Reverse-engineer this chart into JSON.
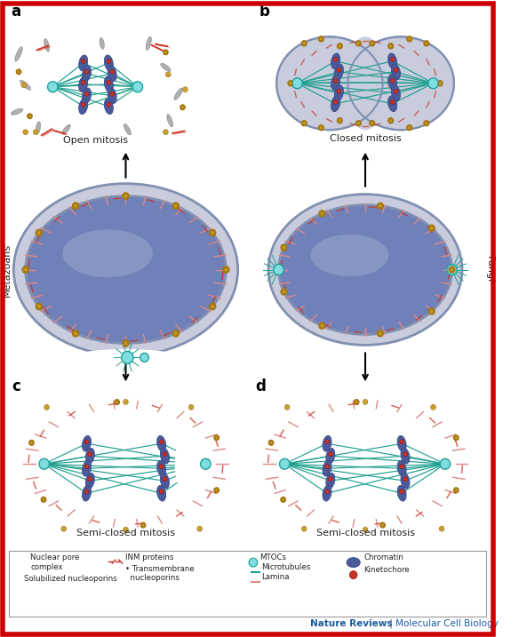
{
  "background_color": "#ffffff",
  "border_color": "#cc0000",
  "colors": {
    "chromatin": "#4a5a9a",
    "chromatin_dark": "#3a4a8a",
    "nucleus_fill": "#7080b8",
    "nucleus_light": "#9aa8cc",
    "envelope_outer": "#c8ccdd",
    "envelope_stroke": "#8090b0",
    "microtubule": "#20a090",
    "kinetochore": "#cc3322",
    "npc": "#c8a020",
    "npc_stroke": "#a07010",
    "mtoc": "#80dddd",
    "mtoc_stroke": "#20a0a0",
    "lamina": "#dd8888",
    "inm": "#cc3322",
    "solubilized_nup": "#c8a030",
    "semi_closed_fill": "#d0d4e8",
    "semi_closed_stroke": "#8090b0",
    "label_color": "#222222",
    "nature_blue": "#1a5ba0",
    "nature_red": "#cc0000",
    "rod_fill": "#b0b0b0",
    "rod_stroke": "#808080"
  },
  "panel_titles": {
    "a": "Open mitosis",
    "b": "Closed mitosis",
    "c": "Semi-closed mitosis",
    "d": "Semi-closed mitosis"
  },
  "side_labels": {
    "left": "Metazoans",
    "right": "Fungi"
  },
  "journal_text": "Nature Reviews | Molecular Cell Biology"
}
